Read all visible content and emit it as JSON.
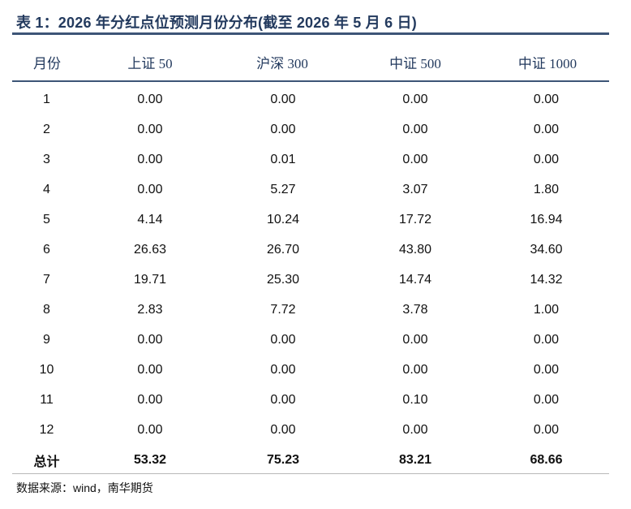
{
  "title": "表 1：2026 年分红点位预测月份分布(截至 2026 年 5 月 6 日)",
  "headers": [
    "月份",
    "上证 50",
    "沪深 300",
    "中证 500",
    "中证 1000"
  ],
  "rows": [
    [
      "1",
      "0.00",
      "0.00",
      "0.00",
      "0.00"
    ],
    [
      "2",
      "0.00",
      "0.00",
      "0.00",
      "0.00"
    ],
    [
      "3",
      "0.00",
      "0.01",
      "0.00",
      "0.00"
    ],
    [
      "4",
      "0.00",
      "5.27",
      "3.07",
      "1.80"
    ],
    [
      "5",
      "4.14",
      "10.24",
      "17.72",
      "16.94"
    ],
    [
      "6",
      "26.63",
      "26.70",
      "43.80",
      "34.60"
    ],
    [
      "7",
      "19.71",
      "25.30",
      "14.74",
      "14.32"
    ],
    [
      "8",
      "2.83",
      "7.72",
      "3.78",
      "1.00"
    ],
    [
      "9",
      "0.00",
      "0.00",
      "0.00",
      "0.00"
    ],
    [
      "10",
      "0.00",
      "0.00",
      "0.00",
      "0.00"
    ],
    [
      "11",
      "0.00",
      "0.00",
      "0.10",
      "0.00"
    ],
    [
      "12",
      "0.00",
      "0.00",
      "0.00",
      "0.00"
    ]
  ],
  "total": [
    "总计",
    "53.32",
    "75.23",
    "83.21",
    "68.66"
  ],
  "source": "数据来源：wind，南华期货",
  "colors": {
    "title": "#233a5e",
    "rule": "#3d5577"
  }
}
